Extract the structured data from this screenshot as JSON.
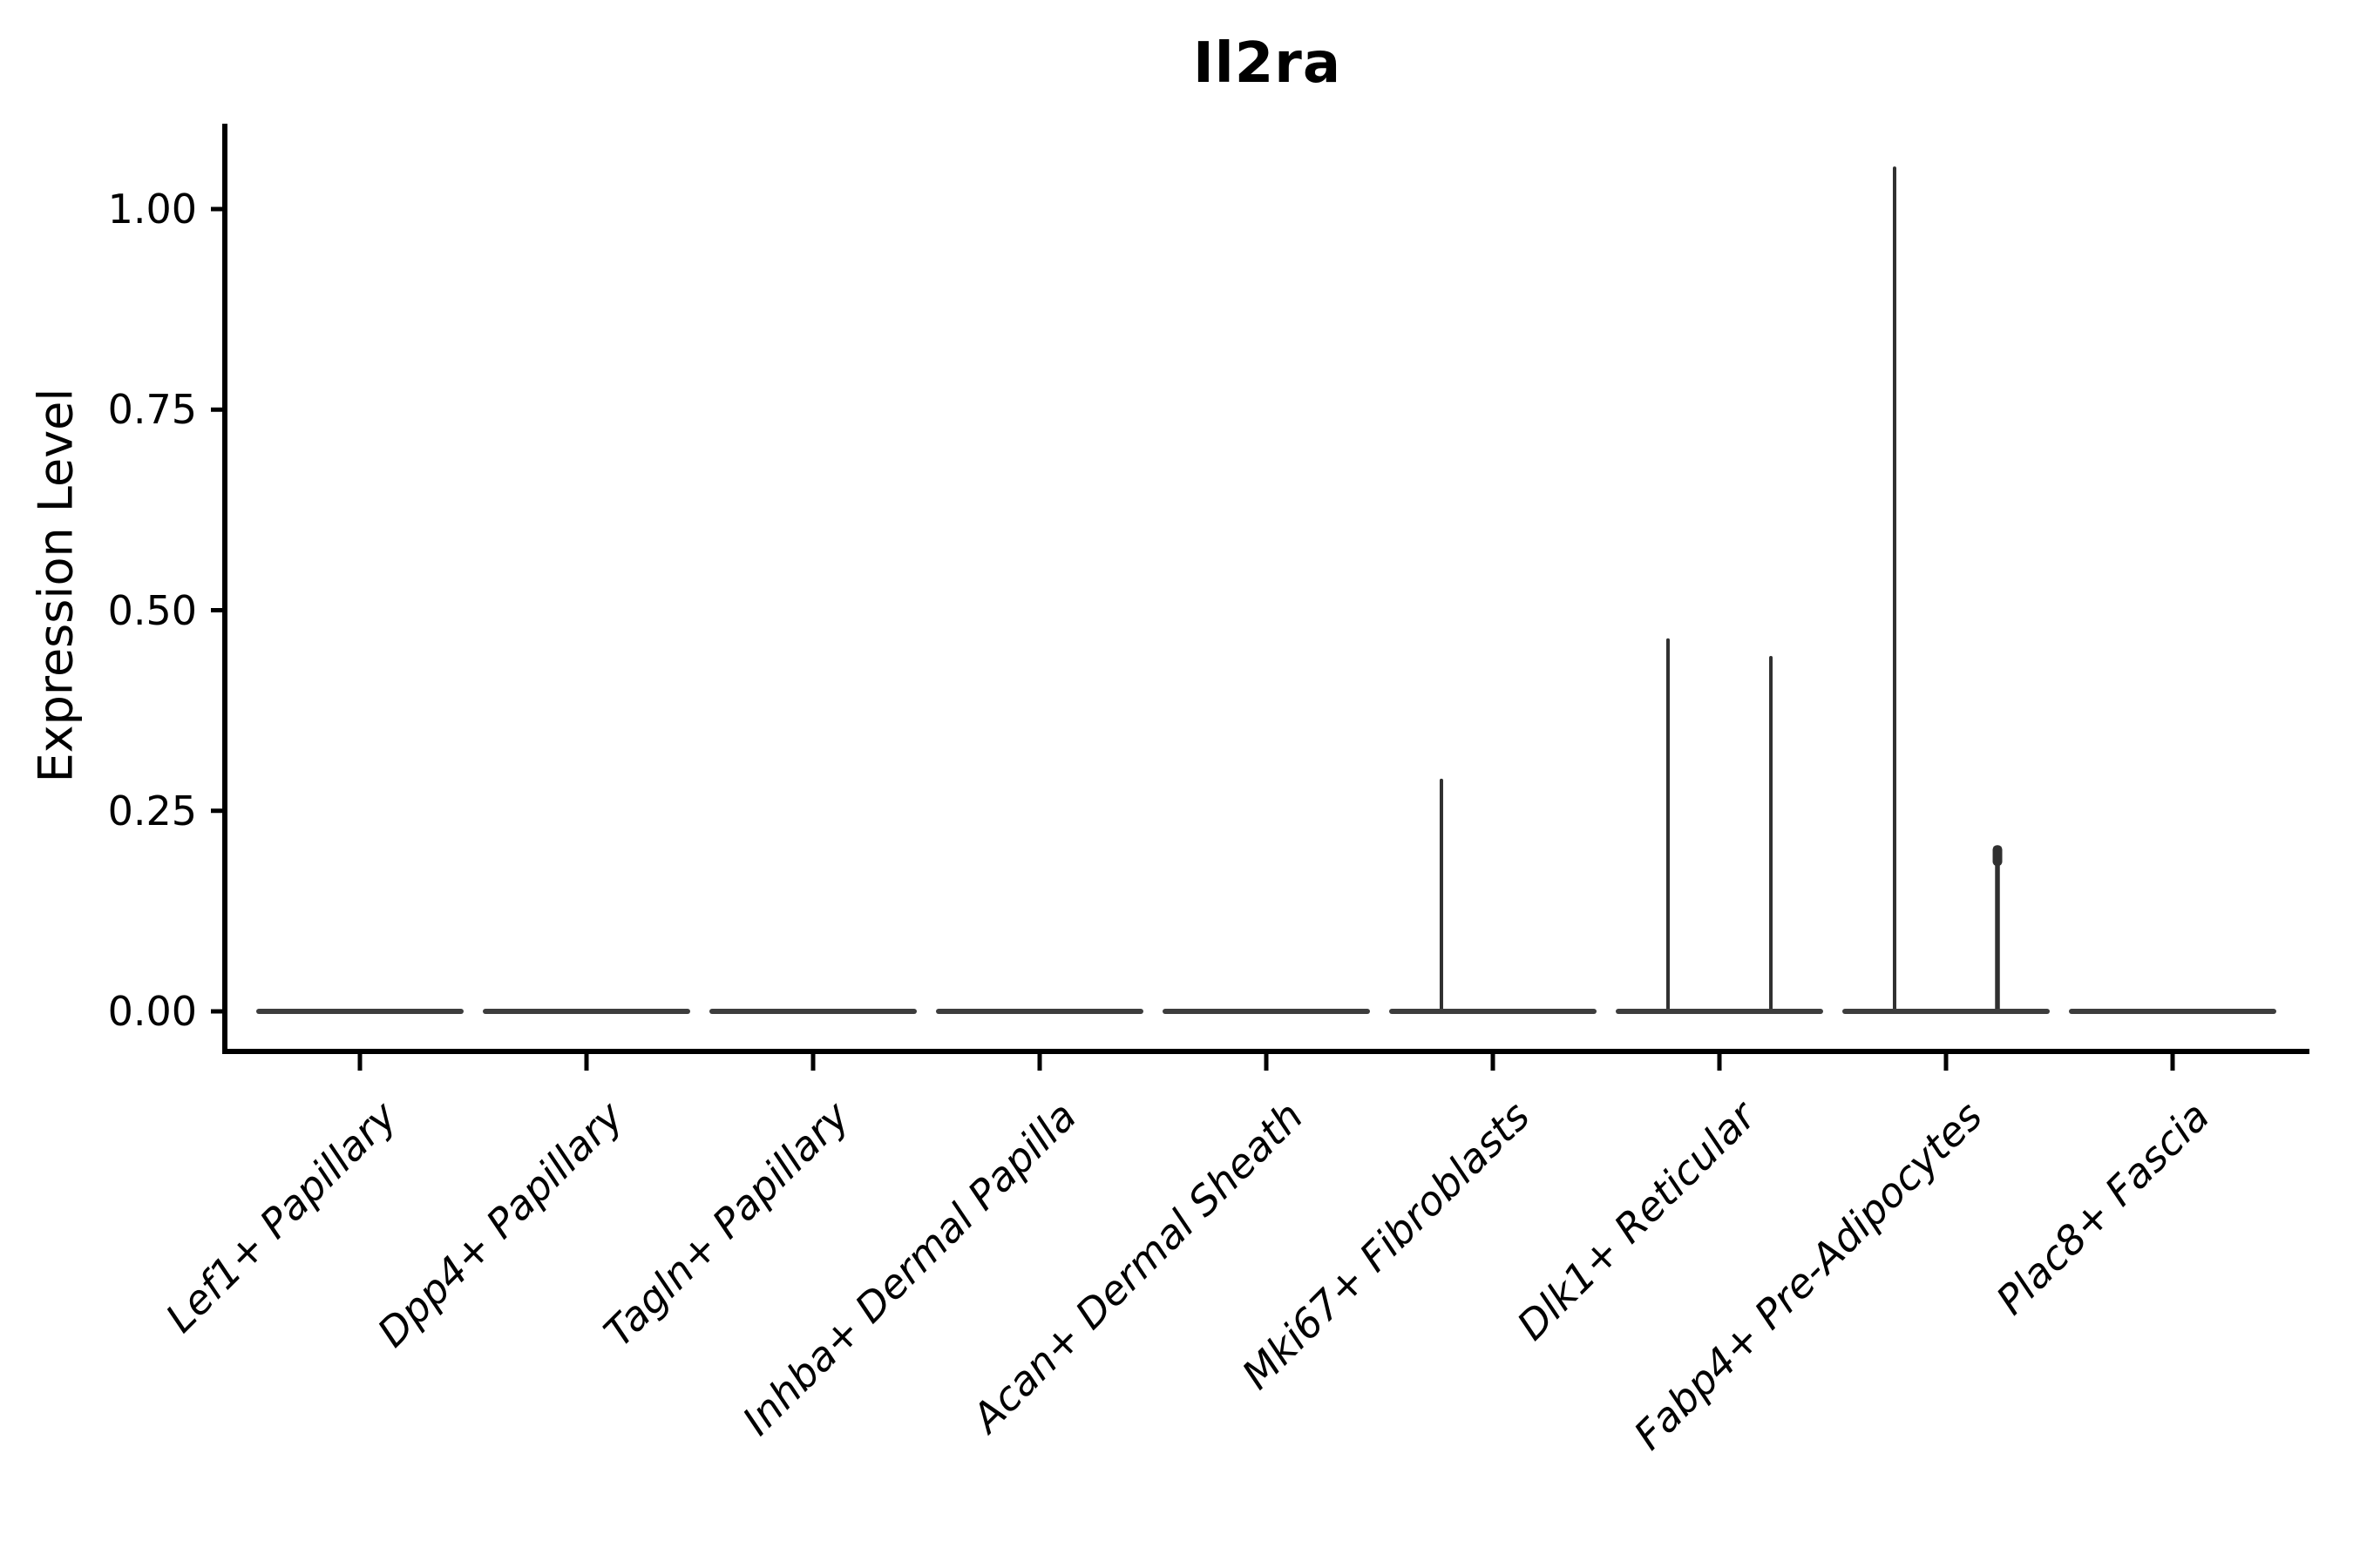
{
  "chart_data": {
    "type": "violin",
    "title": "Il2ra",
    "xlabel": "",
    "ylabel": "Expression Level",
    "ylim": [
      0,
      1.1
    ],
    "grid": false,
    "legend": "none",
    "y_ticks": [
      {
        "label": "0.00",
        "value": 0.0
      },
      {
        "label": "0.25",
        "value": 0.25
      },
      {
        "label": "0.50",
        "value": 0.5
      },
      {
        "label": "0.75",
        "value": 0.75
      },
      {
        "label": "1.00",
        "value": 1.0
      }
    ],
    "categories": [
      "Lef1+ Papillary",
      "Dpp4+ Papillary",
      "Tagln+ Papillary",
      "Inhba+ Dermal Papilla",
      "Acan+ Dermal Sheath",
      "Mki67+ Fibroblasts",
      "Dlk1+ Reticular",
      "Fabp4+ Pre-Adipocytes",
      "Plac8+ Fascia"
    ],
    "violins": [
      {
        "category": "Lef1+ Papillary",
        "base_value": 0.0,
        "spikes": []
      },
      {
        "category": "Dpp4+ Papillary",
        "base_value": 0.0,
        "spikes": []
      },
      {
        "category": "Tagln+ Papillary",
        "base_value": 0.0,
        "spikes": []
      },
      {
        "category": "Inhba+ Dermal Papilla",
        "base_value": 0.0,
        "spikes": []
      },
      {
        "category": "Acan+ Dermal Sheath",
        "base_value": 0.0,
        "spikes": []
      },
      {
        "category": "Mki67+ Fibroblasts",
        "base_value": 0.0,
        "spikes": [
          {
            "offset_frac": -0.227,
            "max": 0.29,
            "cap": false
          }
        ]
      },
      {
        "category": "Dlk1+ Reticular",
        "base_value": 0.0,
        "spikes": [
          {
            "offset_frac": -0.227,
            "max": 0.465,
            "cap": false
          },
          {
            "offset_frac": 0.227,
            "max": 0.443,
            "cap": false
          }
        ]
      },
      {
        "category": "Fabp4+ Pre-Adipocytes",
        "base_value": 0.0,
        "spikes": [
          {
            "offset_frac": -0.227,
            "max": 1.053,
            "cap": false
          },
          {
            "offset_frac": 0.227,
            "max": 0.205,
            "cap": true
          }
        ]
      },
      {
        "category": "Plac8+ Fascia",
        "base_value": 0.0,
        "spikes": []
      }
    ],
    "colors": {
      "axis": "#000000",
      "violin_base": "#3d3d3d",
      "spike": "#303030",
      "text": "#000000",
      "background": "#ffffff"
    }
  }
}
